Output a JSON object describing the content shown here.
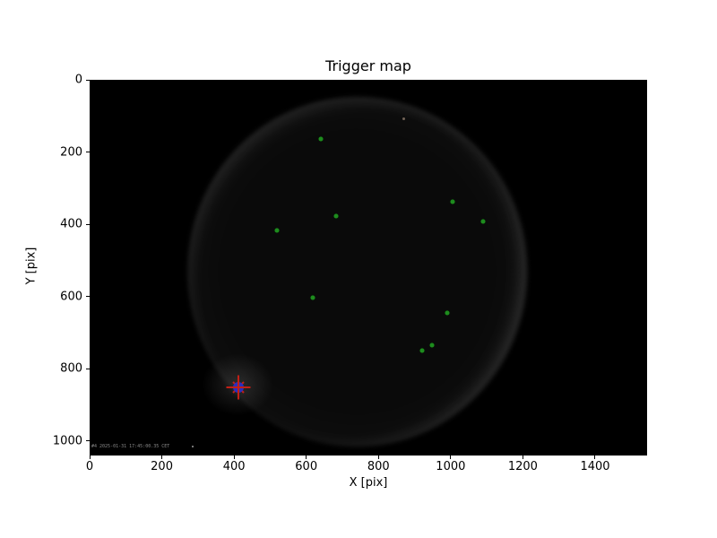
{
  "chart_data": {
    "type": "scatter",
    "title": "Trigger map",
    "xlabel": "X [pix]",
    "ylabel": "Y [pix]",
    "xlim": [
      0,
      1544
    ],
    "ylim": [
      0,
      1040
    ],
    "y_axis_inverted": true,
    "grid": false,
    "legend": null,
    "x_ticks": [
      0,
      200,
      400,
      600,
      800,
      1000,
      1200,
      1400
    ],
    "y_ticks": [
      0,
      200,
      400,
      600,
      800,
      1000
    ],
    "background": {
      "figure_color": "#ffffff",
      "plot_color": "#000000",
      "description": "dark night-sky camera frame with faint circular field-of-view glow"
    },
    "series": [
      {
        "name": "detected-points",
        "marker": "circle",
        "color": "#1e8c1e",
        "points": [
          [
            640,
            163
          ],
          [
            1005,
            337
          ],
          [
            683,
            377
          ],
          [
            1090,
            392
          ],
          [
            519,
            417
          ],
          [
            618,
            603
          ],
          [
            990,
            645
          ],
          [
            948,
            734
          ],
          [
            921,
            749
          ]
        ]
      },
      {
        "name": "trigger-position",
        "marker": "circle+x+plus",
        "fill_color": "#2d2dbe",
        "cross_color": "#c21f16",
        "points": [
          [
            411,
            851
          ]
        ]
      }
    ]
  },
  "watermark": {
    "text": "#4 2025-01-31 17:45:00.35 CET"
  }
}
